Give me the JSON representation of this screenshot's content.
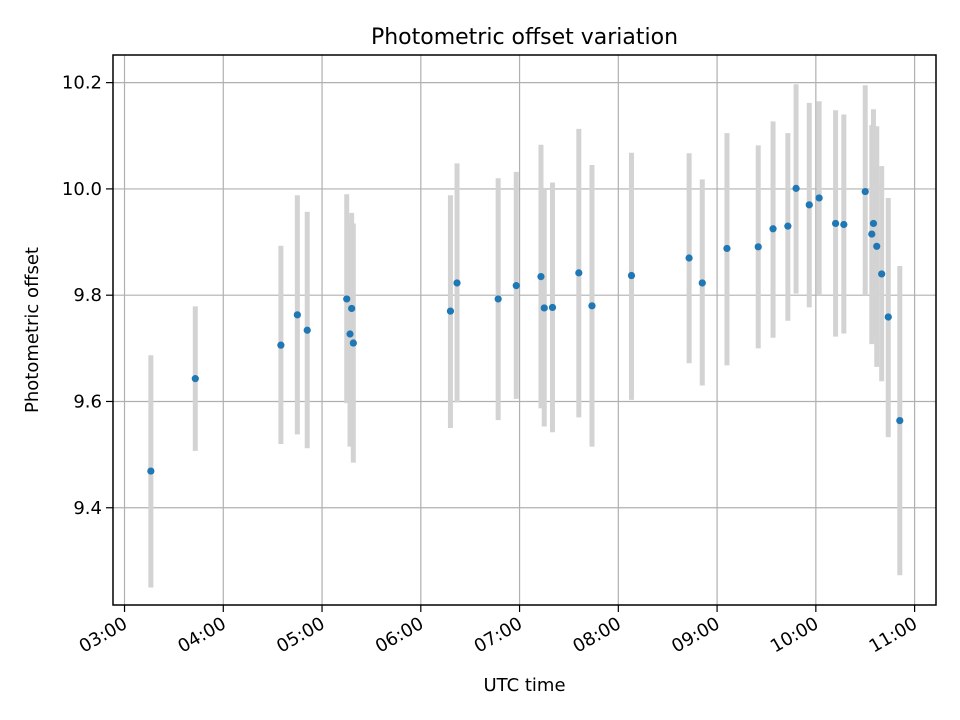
{
  "chart_data": {
    "type": "scatter",
    "title": "Photometric offset variation",
    "xlabel": "UTC time",
    "ylabel": "Photometric offset",
    "x_tick_labels": [
      "03:00",
      "04:00",
      "05:00",
      "06:00",
      "07:00",
      "08:00",
      "09:00",
      "10:00",
      "11:00"
    ],
    "y_tick_labels": [
      "9.4",
      "9.6",
      "9.8",
      "10.0",
      "10.2"
    ],
    "xlim": [
      "02:53",
      "11:13"
    ],
    "ylim": [
      9.217,
      10.252
    ],
    "grid": true,
    "colors": {
      "point": "#1f77b4",
      "errorbar": "#d3d3d3"
    },
    "points": [
      {
        "x": "03:16",
        "y": 9.469,
        "low": 9.25,
        "high": 9.687
      },
      {
        "x": "03:43",
        "y": 9.643,
        "low": 9.507,
        "high": 9.779
      },
      {
        "x": "04:35",
        "y": 9.706,
        "low": 9.52,
        "high": 9.893
      },
      {
        "x": "04:45",
        "y": 9.763,
        "low": 9.538,
        "high": 9.988
      },
      {
        "x": "04:51",
        "y": 9.734,
        "low": 9.512,
        "high": 9.957
      },
      {
        "x": "05:15",
        "y": 9.793,
        "low": 9.597,
        "high": 9.99
      },
      {
        "x": "05:17",
        "y": 9.727,
        "low": 9.515,
        "high": 9.938
      },
      {
        "x": "05:18",
        "y": 9.775,
        "low": 9.597,
        "high": 9.955
      },
      {
        "x": "05:19",
        "y": 9.71,
        "low": 9.485,
        "high": 9.935
      },
      {
        "x": "06:18",
        "y": 9.77,
        "low": 9.55,
        "high": 9.988
      },
      {
        "x": "06:22",
        "y": 9.823,
        "low": 9.598,
        "high": 10.048
      },
      {
        "x": "06:47",
        "y": 9.793,
        "low": 9.565,
        "high": 10.02
      },
      {
        "x": "06:58",
        "y": 9.818,
        "low": 9.605,
        "high": 10.032
      },
      {
        "x": "07:13",
        "y": 9.835,
        "low": 9.587,
        "high": 10.083
      },
      {
        "x": "07:15",
        "y": 9.776,
        "low": 9.553,
        "high": 10.0
      },
      {
        "x": "07:20",
        "y": 9.777,
        "low": 9.542,
        "high": 10.012
      },
      {
        "x": "07:36",
        "y": 9.842,
        "low": 9.57,
        "high": 10.113
      },
      {
        "x": "07:44",
        "y": 9.78,
        "low": 9.515,
        "high": 10.045
      },
      {
        "x": "08:08",
        "y": 9.837,
        "low": 9.603,
        "high": 10.068
      },
      {
        "x": "08:43",
        "y": 9.87,
        "low": 9.672,
        "high": 10.067
      },
      {
        "x": "08:51",
        "y": 9.823,
        "low": 9.63,
        "high": 10.018
      },
      {
        "x": "09:06",
        "y": 9.888,
        "low": 9.668,
        "high": 10.105
      },
      {
        "x": "09:25",
        "y": 9.891,
        "low": 9.7,
        "high": 10.082
      },
      {
        "x": "09:34",
        "y": 9.925,
        "low": 9.72,
        "high": 10.127
      },
      {
        "x": "09:43",
        "y": 9.93,
        "low": 9.752,
        "high": 10.105
      },
      {
        "x": "09:48",
        "y": 10.001,
        "low": 9.803,
        "high": 10.197
      },
      {
        "x": "09:56",
        "y": 9.97,
        "low": 9.777,
        "high": 10.162
      },
      {
        "x": "10:02",
        "y": 9.983,
        "low": 9.8,
        "high": 10.165
      },
      {
        "x": "10:12",
        "y": 9.935,
        "low": 9.722,
        "high": 10.148
      },
      {
        "x": "10:17",
        "y": 9.933,
        "low": 9.728,
        "high": 10.14
      },
      {
        "x": "10:30",
        "y": 9.995,
        "low": 9.8,
        "high": 10.195
      },
      {
        "x": "10:34",
        "y": 9.915,
        "low": 9.708,
        "high": 10.12
      },
      {
        "x": "10:35",
        "y": 9.935,
        "low": 9.72,
        "high": 10.15
      },
      {
        "x": "10:37",
        "y": 9.892,
        "low": 9.665,
        "high": 10.118
      },
      {
        "x": "10:40",
        "y": 9.84,
        "low": 9.638,
        "high": 10.043
      },
      {
        "x": "10:44",
        "y": 9.759,
        "low": 9.533,
        "high": 9.983
      },
      {
        "x": "10:51",
        "y": 9.564,
        "low": 9.273,
        "high": 9.855
      }
    ]
  }
}
